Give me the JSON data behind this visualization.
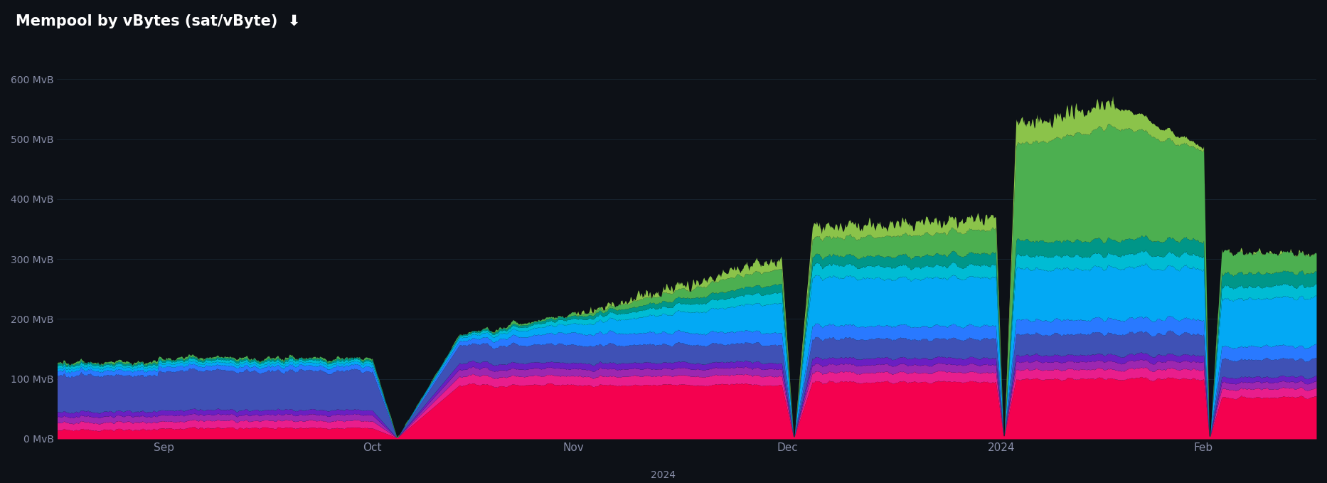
{
  "title": "Mempool by vBytes (sat/vByte)  ⬇",
  "background_color": "#0d1117",
  "text_color": "#888ea8",
  "title_color": "#ffffff",
  "grid_color": "#1e2a35",
  "ylim": [
    0,
    650
  ],
  "yticks": [
    0,
    100,
    200,
    300,
    400,
    500,
    600
  ],
  "ytick_labels": [
    "0 MvB",
    "100 MvB",
    "200 MvB",
    "300 MvB",
    "400 MvB",
    "500 MvB",
    "600 MvB"
  ],
  "layer_colors": [
    "#f4014f",
    "#e91e8c",
    "#9c27b0",
    "#6a1fc2",
    "#3f51b5",
    "#2979ff",
    "#03a9f4",
    "#00bcd4",
    "#009688",
    "#4caf50",
    "#8bc34a",
    "#cddc39",
    "#ffeb3b",
    "#ffc107",
    "#ff9800",
    "#ff5722"
  ],
  "n_points": 1800
}
